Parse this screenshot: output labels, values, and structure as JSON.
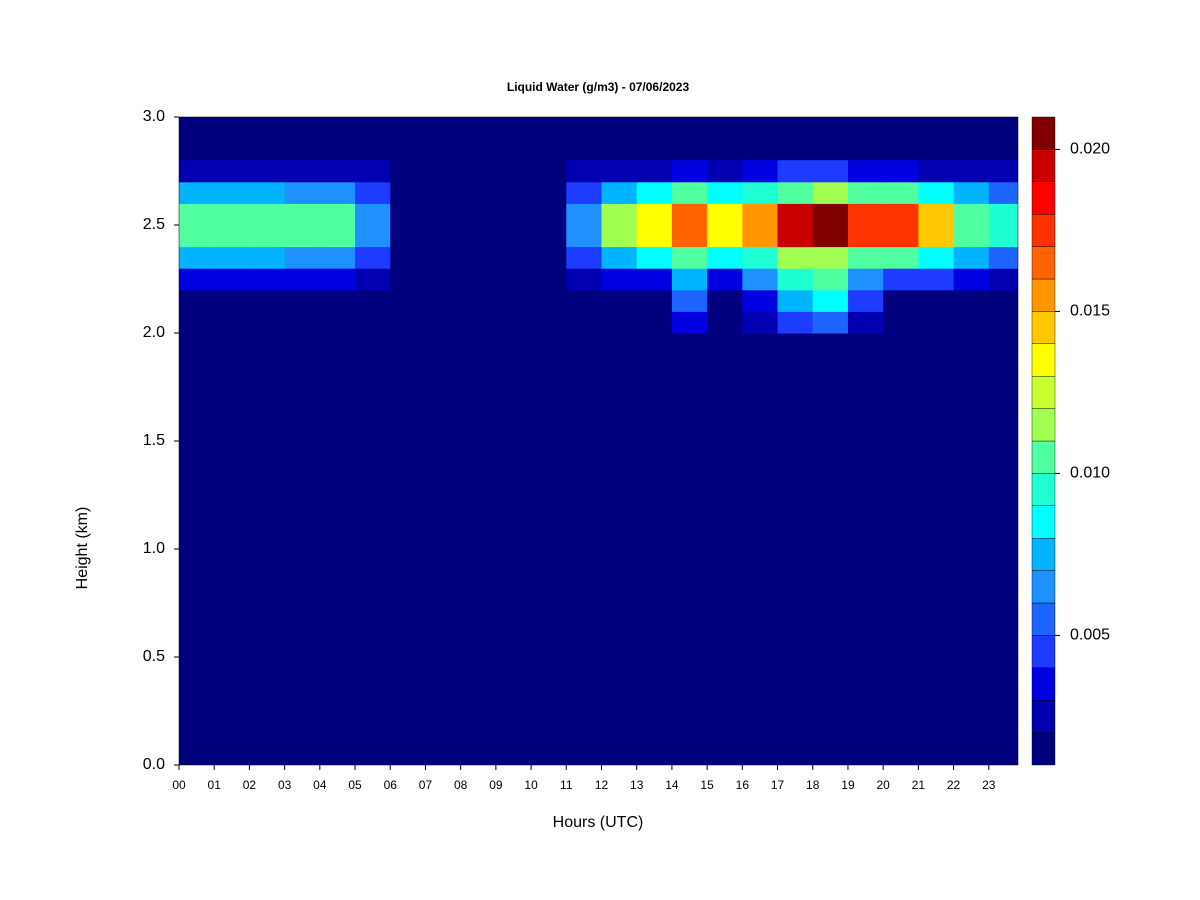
{
  "chart_data": {
    "type": "heatmap",
    "title": "Liquid Water (g/m3) - 07/06/2023",
    "x_label": "Hours (UTC)",
    "y_label": "Height (km)",
    "xlim": [
      0,
      23.83
    ],
    "ylim": [
      0,
      3
    ],
    "xticks": [
      {
        "value": 0,
        "label": "00"
      },
      {
        "value": 1,
        "label": "01"
      },
      {
        "value": 2,
        "label": "02"
      },
      {
        "value": 3,
        "label": "03"
      },
      {
        "value": 4,
        "label": "04"
      },
      {
        "value": 5,
        "label": "05"
      },
      {
        "value": 6,
        "label": "06"
      },
      {
        "value": 7,
        "label": "07"
      },
      {
        "value": 8,
        "label": "08"
      },
      {
        "value": 9,
        "label": "09"
      },
      10,
      11,
      12,
      13,
      14,
      15,
      16,
      17,
      18,
      19,
      20,
      21,
      22,
      23
    ],
    "yticks": [
      {
        "value": 0,
        "label": "0.0"
      },
      0.5,
      {
        "value": 1,
        "label": "1.0"
      },
      1.5,
      {
        "value": 2,
        "label": "2.0"
      },
      2.5,
      {
        "value": 3,
        "label": "3.0"
      }
    ],
    "xbins": [
      0,
      1,
      2,
      3,
      4,
      5,
      6,
      7,
      8,
      9,
      10,
      11,
      12,
      13,
      14,
      15,
      16,
      17,
      18,
      19,
      20,
      21,
      22,
      23,
      24
    ],
    "ybins": [
      2.0,
      2.1,
      2.2,
      2.3,
      2.4,
      2.5,
      2.6,
      2.7,
      2.8
    ],
    "z": [
      [
        0.001,
        0.001,
        0.001,
        0.001,
        0.001,
        0.001,
        0.001,
        0.001,
        0.001,
        0.001,
        0.001,
        0.001,
        0.001,
        0.001,
        0.003,
        0.001,
        0.002,
        0.004,
        0.005,
        0.002,
        0.001,
        0.001,
        0.001,
        0.001
      ],
      [
        0.001,
        0.001,
        0.001,
        0.001,
        0.001,
        0.001,
        0.001,
        0.001,
        0.001,
        0.001,
        0.001,
        0.001,
        0.001,
        0.001,
        0.005,
        0.001,
        0.003,
        0.007,
        0.008,
        0.004,
        0.001,
        0.001,
        0.001,
        0.001
      ],
      [
        0.003,
        0.003,
        0.003,
        0.003,
        0.003,
        0.002,
        0.001,
        0.001,
        0.001,
        0.001,
        0.001,
        0.002,
        0.003,
        0.003,
        0.007,
        0.003,
        0.006,
        0.009,
        0.01,
        0.006,
        0.004,
        0.004,
        0.003,
        0.002
      ],
      [
        0.007,
        0.007,
        0.007,
        0.006,
        0.006,
        0.004,
        0.001,
        0.001,
        0.001,
        0.001,
        0.001,
        0.004,
        0.007,
        0.008,
        0.01,
        0.008,
        0.009,
        0.012,
        0.012,
        0.01,
        0.01,
        0.008,
        0.007,
        0.005
      ],
      [
        0.011,
        0.011,
        0.011,
        0.01,
        0.01,
        0.006,
        0.001,
        0.001,
        0.001,
        0.001,
        0.001,
        0.006,
        0.012,
        0.013,
        0.016,
        0.013,
        0.015,
        0.019,
        0.02,
        0.017,
        0.017,
        0.014,
        0.011,
        0.009
      ],
      [
        0.011,
        0.011,
        0.011,
        0.01,
        0.01,
        0.006,
        0.001,
        0.001,
        0.001,
        0.001,
        0.001,
        0.006,
        0.012,
        0.013,
        0.016,
        0.013,
        0.015,
        0.019,
        0.02,
        0.017,
        0.017,
        0.014,
        0.011,
        0.009
      ],
      [
        0.007,
        0.007,
        0.007,
        0.006,
        0.006,
        0.004,
        0.001,
        0.001,
        0.001,
        0.001,
        0.001,
        0.004,
        0.007,
        0.008,
        0.01,
        0.008,
        0.009,
        0.011,
        0.012,
        0.01,
        0.01,
        0.008,
        0.007,
        0.005
      ],
      [
        0.002,
        0.002,
        0.002,
        0.002,
        0.002,
        0.002,
        0.001,
        0.001,
        0.001,
        0.001,
        0.001,
        0.002,
        0.002,
        0.002,
        0.003,
        0.002,
        0.003,
        0.004,
        0.004,
        0.003,
        0.003,
        0.002,
        0.002,
        0.002
      ]
    ],
    "colorbar": {
      "lim": [
        0.001,
        0.021
      ],
      "ticks": [
        {
          "value": 0.005,
          "label": "0.005"
        },
        {
          "value": 0.01,
          "label": "0.010"
        },
        {
          "value": 0.015,
          "label": "0.015"
        },
        {
          "value": 0.02,
          "label": "0.020"
        }
      ],
      "colors": [
        "#00007f",
        "#0000b0",
        "#0000e0",
        "#1e3cff",
        "#1e64ff",
        "#1e90ff",
        "#00b4ff",
        "#00ffff",
        "#1effd2",
        "#50ffa0",
        "#a0ff50",
        "#c8ff32",
        "#ffff00",
        "#ffc800",
        "#ff9600",
        "#ff6400",
        "#ff3200",
        "#ff0000",
        "#c80000",
        "#800000"
      ]
    }
  }
}
